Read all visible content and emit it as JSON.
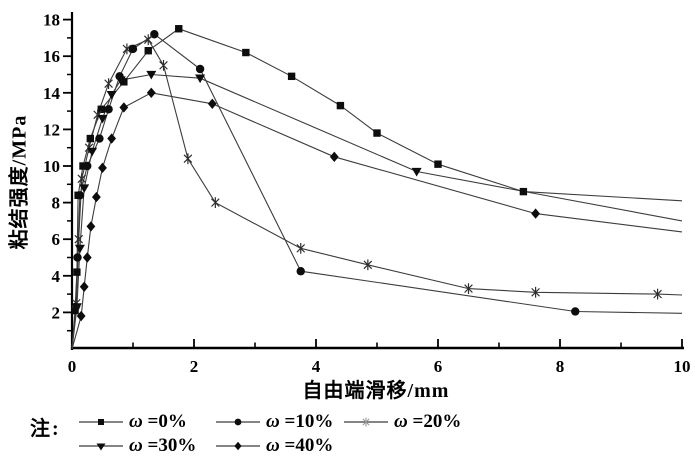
{
  "figure": {
    "note_label": "注:",
    "background": "#ffffff",
    "axis_color": "#000000",
    "line_color": "#3c3c3c",
    "marker_color": "#0d0d0d",
    "asterisk_color": "#2e2e2e",
    "legend_asterisk_color": "#9b9b9b"
  },
  "chart_data": {
    "type": "line",
    "title": "",
    "xlabel": "自由端滑移/mm",
    "ylabel": "粘结强度/MPa",
    "xlim": [
      0,
      10
    ],
    "ylim": [
      0,
      18.4
    ],
    "xticks": [
      0,
      2,
      4,
      6,
      8,
      10
    ],
    "xminorticks": [
      1,
      3,
      5,
      7,
      9
    ],
    "yticks": [
      2,
      4,
      6,
      8,
      10,
      12,
      14,
      16,
      18
    ],
    "yminorticks": [
      1,
      3,
      5,
      7,
      9,
      11,
      13,
      15,
      17
    ],
    "grid": false,
    "legend_position": "below-left",
    "series": [
      {
        "name": "ω =0%",
        "marker": "square",
        "points": [
          [
            0,
            0
          ],
          [
            0.05,
            2.1
          ],
          [
            0.08,
            4.2
          ],
          [
            0.1,
            8.4
          ],
          [
            0.18,
            10.0
          ],
          [
            0.3,
            11.5
          ],
          [
            0.48,
            13.1
          ],
          [
            0.85,
            14.6
          ],
          [
            1.25,
            16.3
          ],
          [
            1.75,
            17.5
          ],
          [
            2.85,
            16.2
          ],
          [
            3.6,
            14.9
          ],
          [
            4.4,
            13.3
          ],
          [
            5.0,
            11.8
          ],
          [
            6.0,
            10.1
          ],
          [
            7.4,
            8.6
          ],
          [
            10,
            8.1
          ]
        ]
      },
      {
        "name": "ω =10%",
        "marker": "circle",
        "points": [
          [
            0,
            0
          ],
          [
            0.06,
            2.3
          ],
          [
            0.09,
            5.0
          ],
          [
            0.13,
            8.4
          ],
          [
            0.25,
            10.0
          ],
          [
            0.45,
            11.5
          ],
          [
            0.6,
            13.1
          ],
          [
            0.78,
            14.9
          ],
          [
            1.0,
            16.4
          ],
          [
            1.35,
            17.2
          ],
          [
            2.1,
            15.3
          ],
          [
            3.75,
            4.25
          ],
          [
            8.25,
            2.05
          ],
          [
            10,
            1.95
          ]
        ]
      },
      {
        "name": "ω =20%",
        "marker": "asterisk",
        "points": [
          [
            0,
            0
          ],
          [
            0.07,
            2.5
          ],
          [
            0.11,
            6.0
          ],
          [
            0.16,
            9.3
          ],
          [
            0.28,
            11.0
          ],
          [
            0.42,
            12.8
          ],
          [
            0.6,
            14.5
          ],
          [
            0.9,
            16.4
          ],
          [
            1.25,
            16.9
          ],
          [
            1.5,
            15.5
          ],
          [
            1.9,
            10.4
          ],
          [
            2.35,
            8.0
          ],
          [
            3.75,
            5.5
          ],
          [
            4.85,
            4.6
          ],
          [
            6.5,
            3.3
          ],
          [
            7.6,
            3.1
          ],
          [
            9.6,
            3.0
          ],
          [
            10,
            2.95
          ]
        ]
      },
      {
        "name": "ω =30%",
        "marker": "triangle-down",
        "points": [
          [
            0,
            0
          ],
          [
            0.08,
            2.3
          ],
          [
            0.13,
            5.5
          ],
          [
            0.2,
            8.8
          ],
          [
            0.33,
            10.8
          ],
          [
            0.5,
            12.6
          ],
          [
            0.65,
            13.9
          ],
          [
            0.8,
            14.7
          ],
          [
            1.3,
            15.0
          ],
          [
            2.1,
            14.8
          ],
          [
            5.65,
            9.7
          ],
          [
            10,
            7.0
          ]
        ]
      },
      {
        "name": "ω =40%",
        "marker": "diamond",
        "points": [
          [
            0,
            0
          ],
          [
            0.15,
            1.8
          ],
          [
            0.2,
            3.4
          ],
          [
            0.25,
            5.0
          ],
          [
            0.31,
            6.7
          ],
          [
            0.4,
            8.3
          ],
          [
            0.5,
            9.9
          ],
          [
            0.65,
            11.5
          ],
          [
            0.85,
            13.2
          ],
          [
            1.3,
            14.0
          ],
          [
            2.3,
            13.4
          ],
          [
            4.3,
            10.5
          ],
          [
            7.6,
            7.4
          ],
          [
            10,
            6.4
          ]
        ]
      }
    ]
  }
}
